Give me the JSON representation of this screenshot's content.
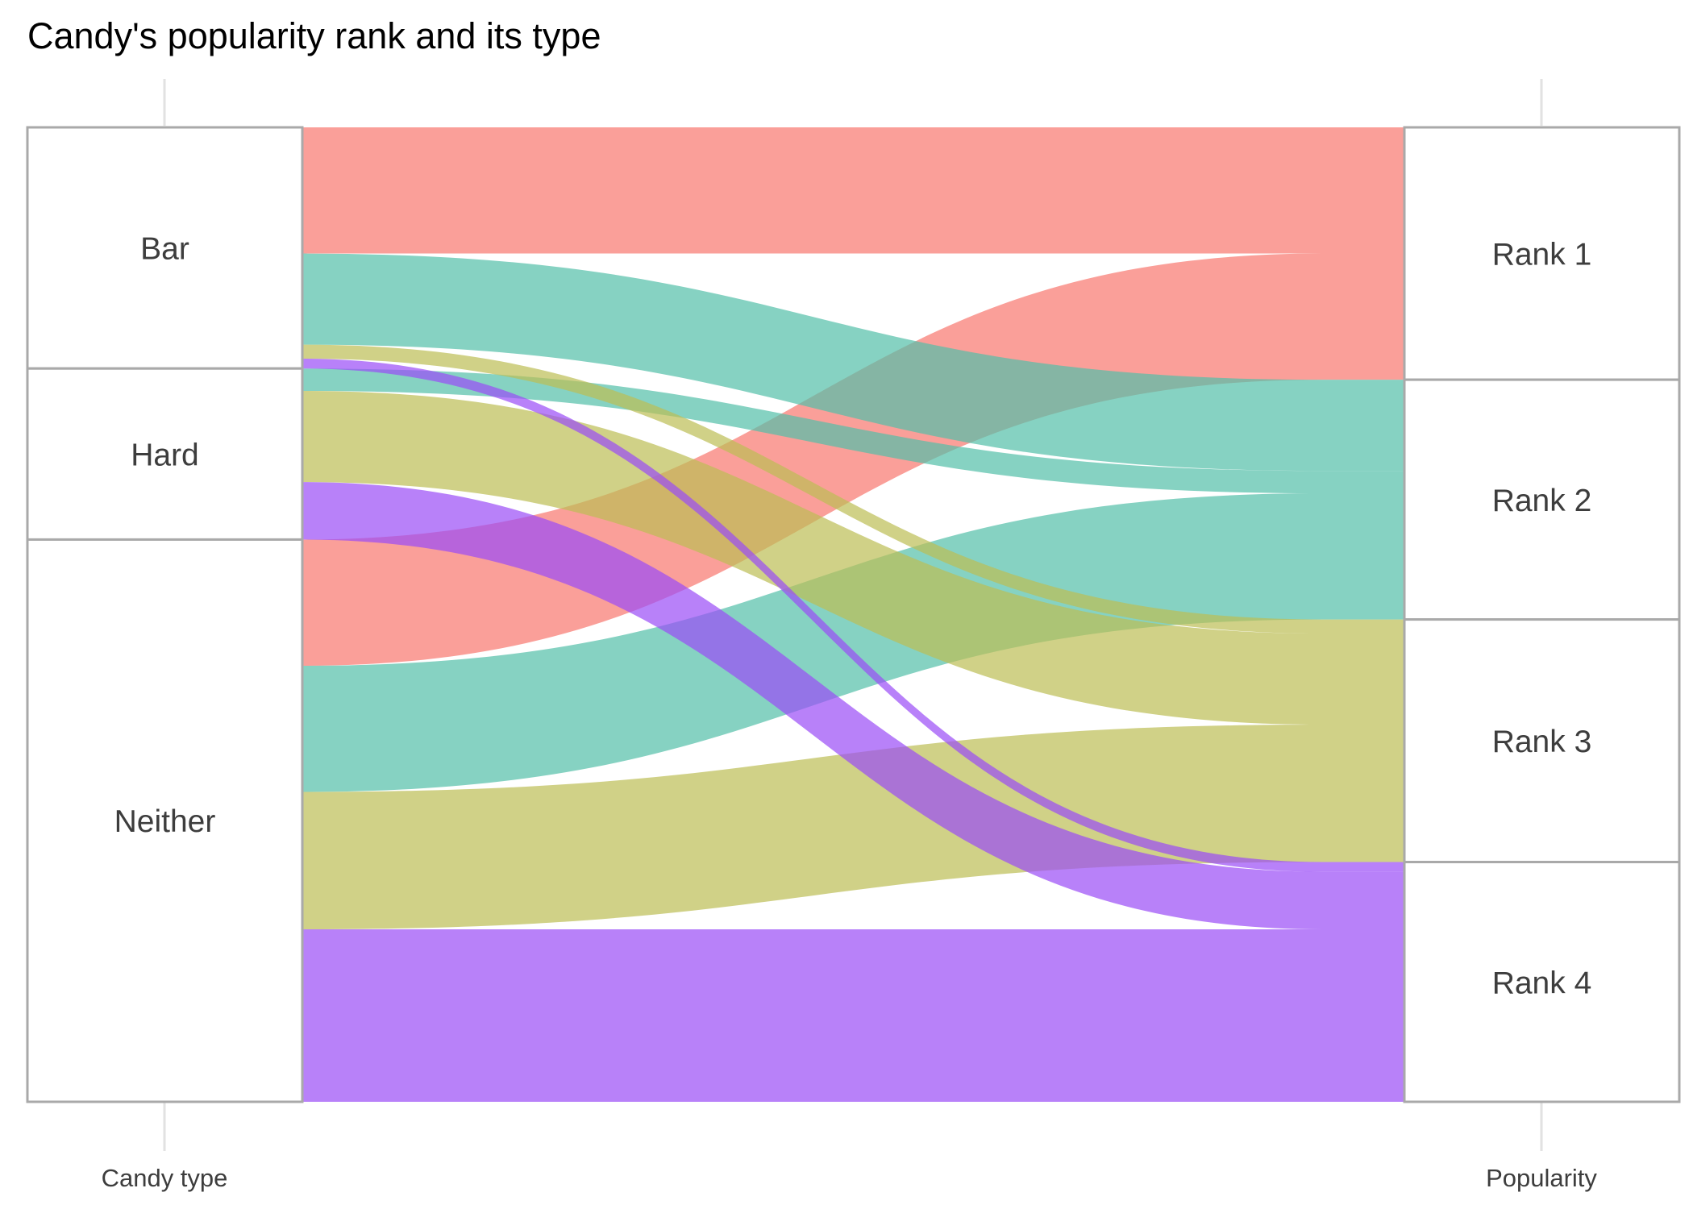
{
  "chart_data": {
    "type": "alluvial",
    "title": "Candy's popularity rank and its type",
    "axes": [
      {
        "label": "Candy type",
        "strata": [
          "Bar",
          "Hard",
          "Neither"
        ]
      },
      {
        "label": "Popularity",
        "strata": [
          "Rank 1",
          "Rank 2",
          "Rank 3",
          "Rank 4"
        ]
      }
    ],
    "colors": {
      "Rank 1": "#f8766d",
      "Rank 2": "#53bfa8",
      "Rank 3": "#bcbd54",
      "Rank 4": "#9a4cf7"
    },
    "flows": [
      {
        "type": "Bar",
        "rank": "Rank 1",
        "count": 9
      },
      {
        "type": "Bar",
        "rank": "Rank 2",
        "count": 6.5
      },
      {
        "type": "Bar",
        "rank": "Rank 3",
        "count": 1
      },
      {
        "type": "Bar",
        "rank": "Rank 4",
        "count": 0.7
      },
      {
        "type": "Hard",
        "rank": "Rank 2",
        "count": 1.6
      },
      {
        "type": "Hard",
        "rank": "Rank 3",
        "count": 6.5
      },
      {
        "type": "Hard",
        "rank": "Rank 4",
        "count": 4.1
      },
      {
        "type": "Neither",
        "rank": "Rank 1",
        "count": 9
      },
      {
        "type": "Neither",
        "rank": "Rank 2",
        "count": 9
      },
      {
        "type": "Neither",
        "rank": "Rank 3",
        "count": 9.8
      },
      {
        "type": "Neither",
        "rank": "Rank 4",
        "count": 12.3
      }
    ]
  }
}
